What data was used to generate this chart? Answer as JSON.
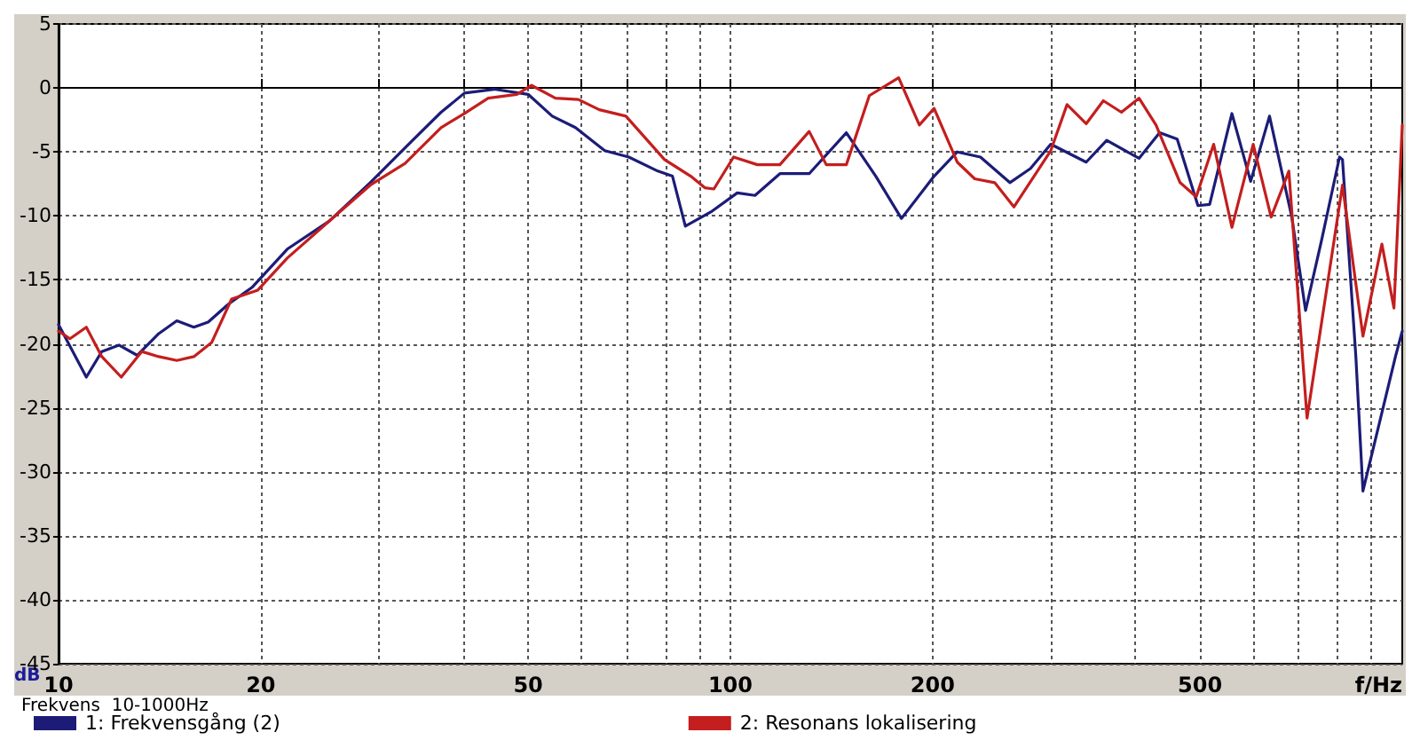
{
  "chart_data": {
    "type": "line",
    "xlabel": "f/Hz",
    "ylabel": "dB",
    "annotations": [
      "Frekvens  10-1000Hz"
    ],
    "log": "x",
    "grid": true,
    "legend": "bottom",
    "marker": "none",
    "line_style": "solid",
    "xlim": [
      10,
      1000
    ],
    "ylim": [
      -45,
      5
    ],
    "xticks": [
      10,
      20,
      {
        "value": 30,
        "label": null
      },
      {
        "value": 40,
        "label": null
      },
      50,
      {
        "value": 60,
        "label": null
      },
      {
        "value": 70,
        "label": null
      },
      {
        "value": 80,
        "label": null
      },
      {
        "value": 90,
        "label": null
      },
      100,
      200,
      {
        "value": 300,
        "label": null
      },
      {
        "value": 400,
        "label": null
      },
      500,
      {
        "value": 600,
        "label": null
      },
      {
        "value": 700,
        "label": null
      },
      {
        "value": 800,
        "label": null
      },
      {
        "value": 900,
        "label": null
      }
    ],
    "yticks": [
      5,
      0,
      -5,
      -10,
      -15,
      -20,
      -25,
      -30,
      -35,
      -40,
      -45
    ],
    "series": [
      {
        "name": "1: Frekvensgång (2)",
        "color": "#1c1c78",
        "x": [
          10,
          11,
          11.6,
          12.3,
          13.1,
          14.1,
          15,
          15.9,
          16.7,
          17.9,
          19.4,
          21.9,
          25.3,
          29.1,
          33.5,
          37.1,
          40.2,
          44.5,
          50,
          54.3,
          58.8,
          65,
          70.6,
          78,
          82,
          85.7,
          93.5,
          102.4,
          108.8,
          118.5,
          131,
          148.8,
          164.6,
          179.7,
          201,
          217.6,
          235.6,
          260.6,
          279.6,
          299.8,
          338.5,
          363.2,
          405.7,
          435.4,
          462.4,
          496.5,
          516.8,
          557.8,
          594.8,
          634.5,
          684.9,
          718,
          758.5,
          806.6,
          814.8,
          853,
          874,
          977,
          1000
        ],
        "values": [
          -18.5,
          -22.6,
          -20.6,
          -20.1,
          -20.9,
          -19.2,
          -18.2,
          -18.7,
          -18.3,
          -16.9,
          -15.6,
          -12.6,
          -10.4,
          -7.4,
          -4.2,
          -1.9,
          -0.4,
          -0.1,
          -0.5,
          -2.2,
          -3.1,
          -4.9,
          -5.4,
          -6.5,
          -6.9,
          -10.8,
          -9.7,
          -8.2,
          -8.4,
          -6.7,
          -6.7,
          -3.5,
          -6.9,
          -10.2,
          -6.9,
          -5,
          -5.4,
          -7.4,
          -6.3,
          -4.4,
          -5.8,
          -4.1,
          -5.5,
          -3.5,
          -4,
          -9.2,
          -9.1,
          -2,
          -7.3,
          -2.2,
          -10.1,
          -17.4,
          -11.9,
          -5.4,
          -5.6,
          -21,
          -31.5,
          -21,
          -19
        ]
      },
      {
        "name": "2: Resonans lokalisering",
        "color": "#c41e1e",
        "x": [
          10,
          10.4,
          11,
          11.6,
          12.4,
          13.3,
          14.1,
          15,
          15.9,
          16.9,
          18.1,
          19.8,
          21.9,
          25.3,
          29.1,
          32.8,
          37.1,
          40.2,
          43.6,
          48.1,
          50.6,
          54.9,
          59.4,
          63.8,
          69.9,
          79.8,
          87.3,
          91.6,
          94.5,
          101.1,
          109.7,
          118.5,
          131,
          138.9,
          148.8,
          161,
          178,
          191.1,
          201,
          217.6,
          231,
          247.4,
          264.3,
          299.8,
          317,
          338.5,
          359,
          382,
          405.7,
          430,
          467,
          493.6,
          524,
          557.8,
          600,
          638,
          678,
          721.6,
          814.8,
          874,
          932.6,
          972,
          1000
        ],
        "values": [
          -19,
          -19.6,
          -18.7,
          -21,
          -22.6,
          -20.6,
          -21,
          -21.3,
          -21,
          -19.9,
          -16.5,
          -15.8,
          -13.3,
          -10.4,
          -7.6,
          -5.9,
          -3.1,
          -2,
          -0.8,
          -0.5,
          0.2,
          -0.8,
          -0.9,
          -1.7,
          -2.2,
          -5.6,
          -6.9,
          -7.8,
          -7.9,
          -5.4,
          -6,
          -6,
          -3.4,
          -6,
          -6,
          -0.6,
          0.8,
          -2.9,
          -1.6,
          -5.8,
          -7.1,
          -7.4,
          -9.3,
          -4.9,
          -1.3,
          -2.8,
          -1,
          -1.9,
          -0.8,
          -2.9,
          -7.4,
          -8.5,
          -4.4,
          -10.9,
          -4.4,
          -10.1,
          -6.5,
          -25.8,
          -7.6,
          -19.4,
          -12.2,
          -17.2,
          -2.9
        ]
      }
    ]
  }
}
